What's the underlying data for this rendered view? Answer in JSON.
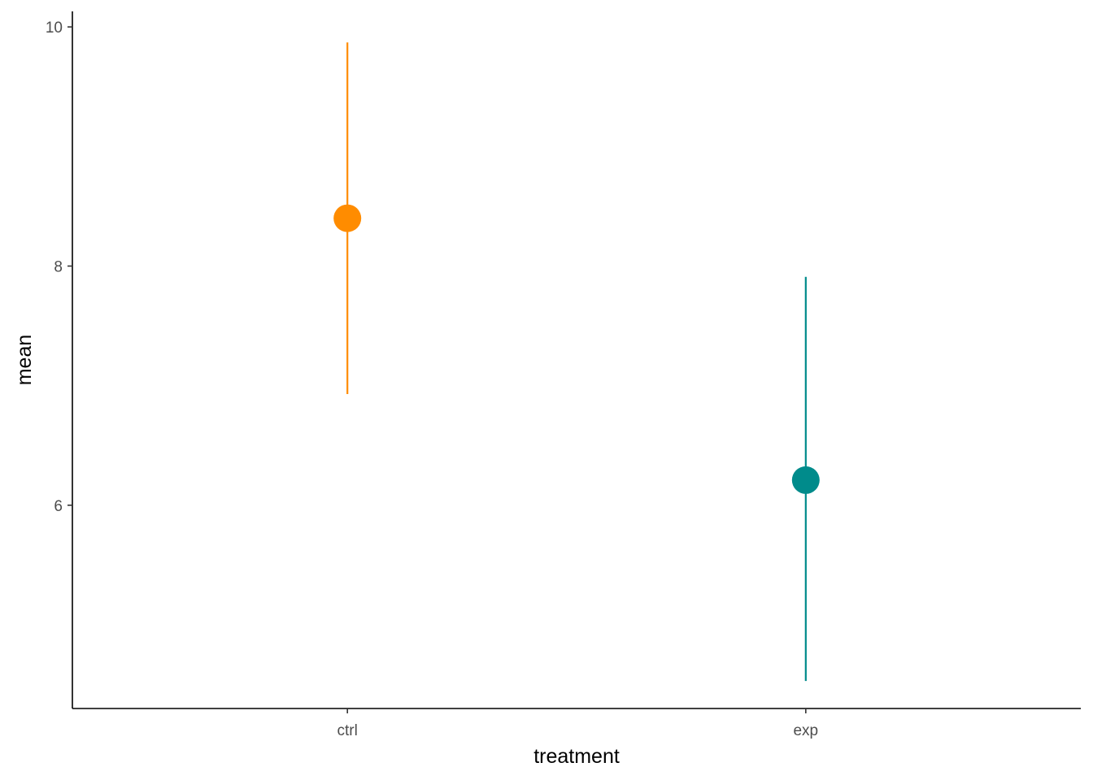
{
  "chart_data": {
    "type": "scatter",
    "title": "",
    "xlabel": "treatment",
    "ylabel": "mean",
    "categories": [
      "ctrl",
      "exp"
    ],
    "ylim": [
      4.3,
      10.13
    ],
    "y_ticks": [
      6,
      8,
      10
    ],
    "grid": false,
    "legend": "none",
    "points": [
      {
        "category": "ctrl",
        "mean": 8.4,
        "lower": 6.93,
        "upper": 9.87,
        "color": "#FF8C00"
      },
      {
        "category": "exp",
        "mean": 6.21,
        "lower": 4.53,
        "upper": 7.91,
        "color": "#008B8B"
      }
    ]
  }
}
